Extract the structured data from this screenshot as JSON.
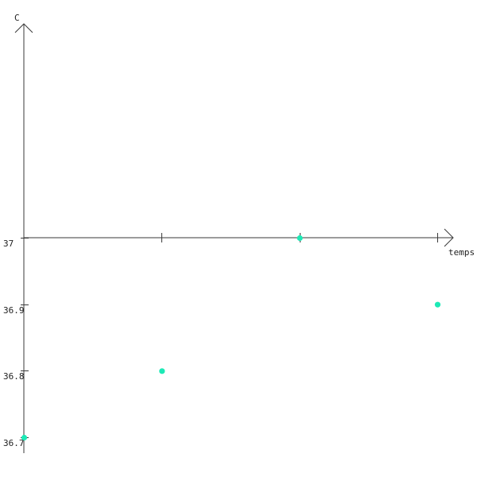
{
  "chart_data": {
    "type": "scatter",
    "title": "",
    "xlabel": "temps",
    "ylabel": "C",
    "x": [
      0,
      1,
      2,
      3
    ],
    "y": [
      36.7,
      36.8,
      37,
      36.9
    ],
    "xlim": [
      0,
      3
    ],
    "ylim": [
      36.7,
      37
    ],
    "x_ticks": [
      1,
      2,
      3
    ],
    "y_ticks": [
      {
        "value": 37,
        "label": "37"
      },
      {
        "value": 36.9,
        "label": "36.9"
      },
      {
        "value": 36.8,
        "label": "36.8"
      },
      {
        "value": 36.7,
        "label": "36.7"
      }
    ],
    "grid": false,
    "point_color": "#1de9b6",
    "axis_color": "#3a3a3a"
  }
}
